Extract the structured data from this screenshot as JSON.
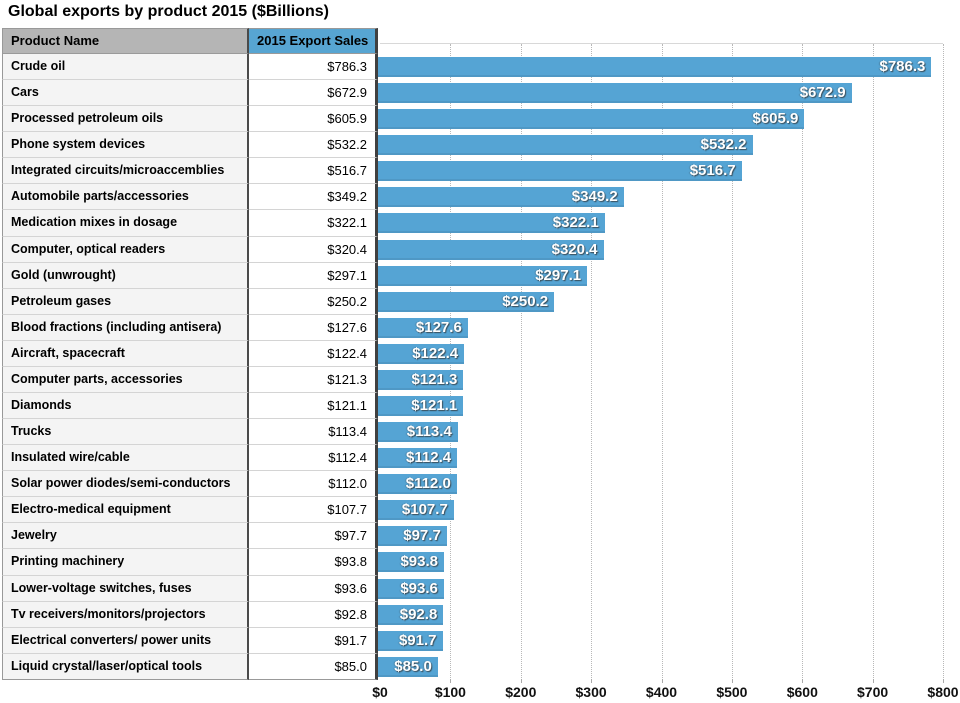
{
  "title": "Global exports by product 2015 ($Billions)",
  "table": {
    "columns": [
      "Product Name",
      "2015 Export Sales"
    ]
  },
  "colors": {
    "bar": "#55a4d4",
    "header_blue": "#57a5d2",
    "header_gray": "#b5b5b5",
    "bar_label_text": "#ffffff"
  },
  "chart_data": {
    "type": "bar",
    "orientation": "horizontal",
    "title": "Global exports by product 2015 ($Billions)",
    "xlabel": "",
    "ylabel": "",
    "xlim": [
      0,
      800
    ],
    "x_ticks": [
      "$0",
      "$100",
      "$200",
      "$300",
      "$400",
      "$500",
      "$600",
      "$700",
      "$800"
    ],
    "grid": "vertical-dotted",
    "legend": "none",
    "categories": [
      "Crude oil",
      "Cars",
      "Processed petroleum oils",
      "Phone system devices",
      "Integrated circuits/microaccemblies",
      "Automobile parts/accessories",
      "Medication mixes in dosage",
      "Computer, optical readers",
      "Gold (unwrought)",
      "Petroleum gases",
      "Blood fractions (including antisera)",
      "Aircraft, spacecraft",
      "Computer parts, accessories",
      "Diamonds",
      "Trucks",
      "Insulated wire/cable",
      "Solar power diodes/semi-conductors",
      "Electro-medical equipment",
      "Jewelry",
      "Printing machinery",
      "Lower-voltage switches, fuses",
      "Tv receivers/monitors/projectors",
      "Electrical converters/ power units",
      "Liquid crystal/laser/optical tools"
    ],
    "values": [
      786.3,
      672.9,
      605.9,
      532.2,
      516.7,
      349.2,
      322.1,
      320.4,
      297.1,
      250.2,
      127.6,
      122.4,
      121.3,
      121.1,
      113.4,
      112.4,
      112.0,
      107.7,
      97.7,
      93.8,
      93.6,
      92.8,
      91.7,
      85.0
    ],
    "rows": [
      {
        "name": "Crude oil",
        "value": 786.3,
        "display": "$786.3"
      },
      {
        "name": "Cars",
        "value": 672.9,
        "display": "$672.9"
      },
      {
        "name": "Processed petroleum oils",
        "value": 605.9,
        "display": "$605.9"
      },
      {
        "name": "Phone system devices",
        "value": 532.2,
        "display": "$532.2"
      },
      {
        "name": "Integrated circuits/microaccemblies",
        "value": 516.7,
        "display": "$516.7"
      },
      {
        "name": "Automobile parts/accessories",
        "value": 349.2,
        "display": "$349.2"
      },
      {
        "name": "Medication mixes in dosage",
        "value": 322.1,
        "display": "$322.1"
      },
      {
        "name": "Computer, optical readers",
        "value": 320.4,
        "display": "$320.4"
      },
      {
        "name": "Gold (unwrought)",
        "value": 297.1,
        "display": "$297.1"
      },
      {
        "name": "Petroleum gases",
        "value": 250.2,
        "display": "$250.2"
      },
      {
        "name": "Blood fractions (including antisera)",
        "value": 127.6,
        "display": "$127.6"
      },
      {
        "name": "Aircraft, spacecraft",
        "value": 122.4,
        "display": "$122.4"
      },
      {
        "name": "Computer parts, accessories",
        "value": 121.3,
        "display": "$121.3"
      },
      {
        "name": "Diamonds",
        "value": 121.1,
        "display": "$121.1"
      },
      {
        "name": "Trucks",
        "value": 113.4,
        "display": "$113.4"
      },
      {
        "name": "Insulated wire/cable",
        "value": 112.4,
        "display": "$112.4"
      },
      {
        "name": "Solar power diodes/semi-conductors",
        "value": 112.0,
        "display": "$112.0"
      },
      {
        "name": "Electro-medical equipment",
        "value": 107.7,
        "display": "$107.7"
      },
      {
        "name": "Jewelry",
        "value": 97.7,
        "display": "$97.7"
      },
      {
        "name": "Printing machinery",
        "value": 93.8,
        "display": "$93.8"
      },
      {
        "name": "Lower-voltage switches, fuses",
        "value": 93.6,
        "display": "$93.6"
      },
      {
        "name": "Tv receivers/monitors/projectors",
        "value": 92.8,
        "display": "$92.8"
      },
      {
        "name": "Electrical converters/ power units",
        "value": 91.7,
        "display": "$91.7"
      },
      {
        "name": "Liquid crystal/laser/optical tools",
        "value": 85.0,
        "display": "$85.0"
      }
    ]
  }
}
